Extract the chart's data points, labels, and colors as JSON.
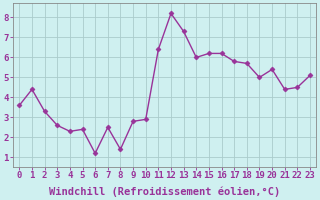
{
  "x": [
    0,
    1,
    2,
    3,
    4,
    5,
    6,
    7,
    8,
    9,
    10,
    11,
    12,
    13,
    14,
    15,
    16,
    17,
    18,
    19,
    20,
    21,
    22,
    23
  ],
  "y": [
    3.6,
    4.4,
    3.3,
    2.6,
    2.3,
    2.4,
    1.2,
    2.5,
    1.4,
    2.8,
    2.9,
    6.4,
    8.2,
    7.3,
    6.0,
    6.2,
    6.2,
    5.8,
    5.7,
    5.0,
    5.4,
    4.4,
    4.5,
    5.1
  ],
  "line_color": "#993399",
  "marker": "D",
  "marker_size": 2.5,
  "bg_color": "#cff0f0",
  "grid_color": "#aacccc",
  "xlabel": "Windchill (Refroidissement éolien,°C)",
  "xlim": [
    -0.5,
    23.5
  ],
  "ylim": [
    0.5,
    8.7
  ],
  "yticks": [
    1,
    2,
    3,
    4,
    5,
    6,
    7,
    8
  ],
  "xticks": [
    0,
    1,
    2,
    3,
    4,
    5,
    6,
    7,
    8,
    9,
    10,
    11,
    12,
    13,
    14,
    15,
    16,
    17,
    18,
    19,
    20,
    21,
    22,
    23
  ],
  "xlabel_fontsize": 7.5,
  "tick_fontsize": 6.5,
  "label_color": "#993399",
  "line_width": 1.0,
  "spine_color": "#888888"
}
